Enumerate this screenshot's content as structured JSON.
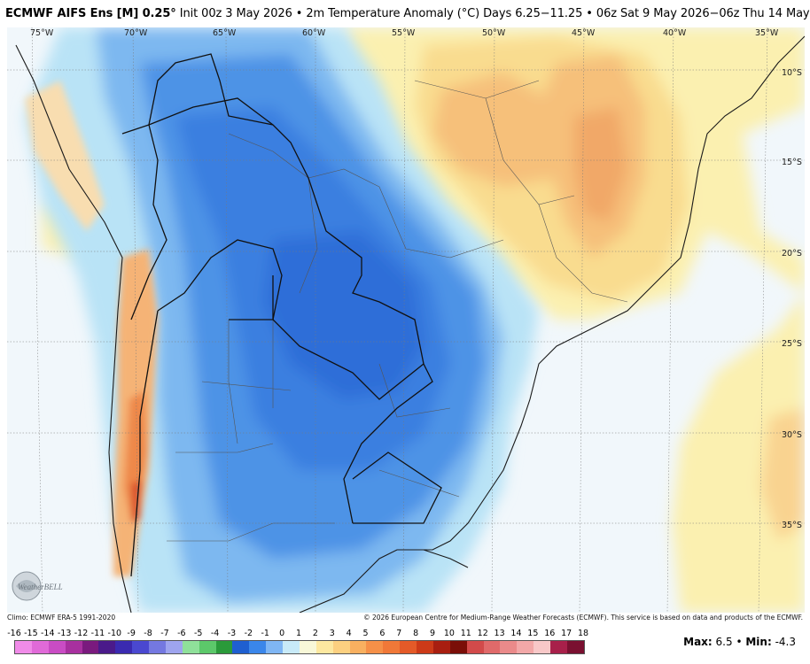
{
  "title": {
    "model": "ECMWF AIFS Ens [M] 0.25",
    "degree": "°",
    "rest": " Init 00z 3 May 2026 • 2m Temperature Anomaly (°C) Days 6.25−11.25 • 06z Sat 9 May 2026−06z Thu 14 May 2026"
  },
  "lon_labels": [
    "75°W",
    "70°W",
    "65°W",
    "60°W",
    "55°W",
    "50°W",
    "45°W",
    "40°W",
    "35°W"
  ],
  "lat_labels": [
    "10°S",
    "15°S",
    "20°S",
    "25°S",
    "30°S",
    "35°S"
  ],
  "footer": {
    "climo": "Climo: ECMWF ERA-5 1991-2020",
    "copyright": "© 2026 European Centre for Medium-Range Weather Forecasts (ECMWF). This service is based on data and products of the ECMWF."
  },
  "stats": {
    "max_label": "Max:",
    "max_value": "6.5",
    "sep": " • ",
    "min_label": "Min:",
    "min_value": "-4.3"
  },
  "colorbar": {
    "labels": [
      "-16",
      "-15",
      "-14",
      "-13",
      "-12",
      "-11",
      "-10",
      "-9",
      "-8",
      "-7",
      "-6",
      "-5",
      "-4",
      "-3",
      "-2",
      "-1",
      "0",
      "1",
      "2",
      "3",
      "4",
      "5",
      "6",
      "7",
      "8",
      "9",
      "10",
      "11",
      "12",
      "13",
      "14",
      "15",
      "16",
      "17",
      "18"
    ],
    "colors": [
      "#f08be8",
      "#e06ad8",
      "#c94cc4",
      "#a8309f",
      "#7a1a7e",
      "#4a1a8a",
      "#3a2ab0",
      "#4a48d0",
      "#7478e0",
      "#9ea4ee",
      "#8fe09a",
      "#5cc86a",
      "#2a9a3a",
      "#1f5fd0",
      "#3a86ea",
      "#7fb6f4",
      "#c8eaf8",
      "#f8f8d8",
      "#fde8a0",
      "#fcd080",
      "#f8b060",
      "#f59048",
      "#f07838",
      "#e45a28",
      "#cc3a18",
      "#a81e10",
      "#7a0e08",
      "#d24a4a",
      "#e06a6a",
      "#ea8a8a",
      "#f2a8a8",
      "#f8c8c8",
      "#a8204a",
      "#7a1030"
    ]
  },
  "logo_text": "WeatherBELL"
}
